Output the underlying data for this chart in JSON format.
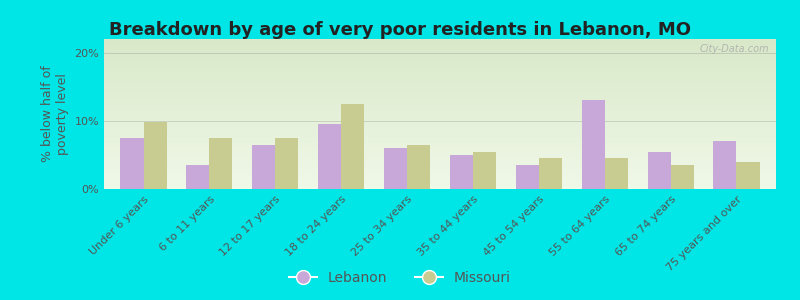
{
  "title": "Breakdown by age of very poor residents in Lebanon, MO",
  "ylabel": "% below half of\npoverty level",
  "categories": [
    "Under 6 years",
    "6 to 11 years",
    "12 to 17 years",
    "18 to 24 years",
    "25 to 34 years",
    "35 to 44 years",
    "45 to 54 years",
    "55 to 64 years",
    "65 to 74 years",
    "75 years and over"
  ],
  "lebanon_values": [
    7.5,
    3.5,
    6.5,
    9.5,
    6.0,
    5.0,
    3.5,
    13.0,
    5.5,
    7.0
  ],
  "missouri_values": [
    9.8,
    7.5,
    7.5,
    12.5,
    6.5,
    5.5,
    4.5,
    4.5,
    3.5,
    4.0
  ],
  "lebanon_color": "#c8a8d8",
  "missouri_color": "#c8cc90",
  "background_color": "#00e5e5",
  "plot_bg_top": "#d8e8c8",
  "plot_bg_bottom": "#f0f8e8",
  "ylim": [
    0,
    22
  ],
  "yticks": [
    0,
    10,
    20
  ],
  "ytick_labels": [
    "0%",
    "10%",
    "20%"
  ],
  "bar_width": 0.35,
  "title_fontsize": 13,
  "axis_fontsize": 9,
  "tick_fontsize": 8,
  "legend_fontsize": 10,
  "watermark": "City-Data.com",
  "label_color": "#555555",
  "tick_color": "#555555"
}
